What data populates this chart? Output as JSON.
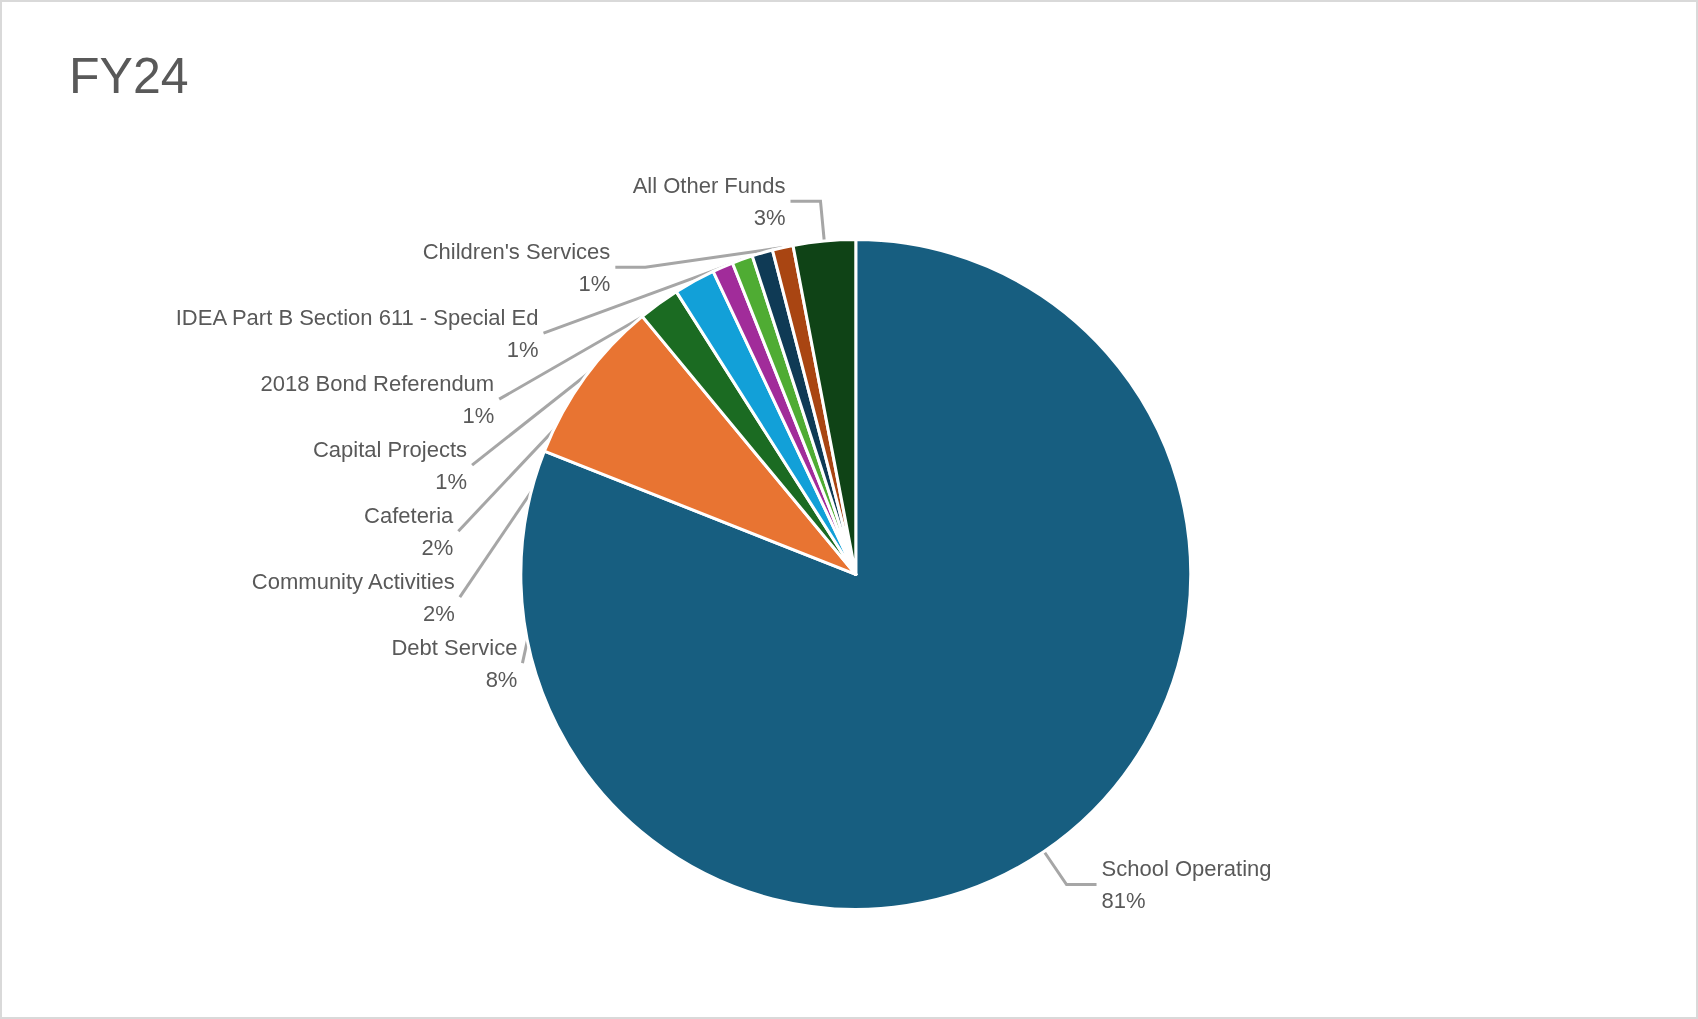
{
  "chart_data": {
    "type": "pie",
    "title": "FY24",
    "categories": [
      "School Operating",
      "Debt Service",
      "Community Activities",
      "Cafeteria",
      "Capital Projects",
      "2018 Bond Referendum",
      "IDEA Part B Section 611 - Special Ed",
      "Children's Services",
      "All Other Funds"
    ],
    "values": [
      81,
      8,
      2,
      2,
      1,
      1,
      1,
      1,
      3
    ],
    "value_labels": [
      "81%",
      "8%",
      "2%",
      "2%",
      "1%",
      "1%",
      "1%",
      "1%",
      "3%"
    ],
    "colors": [
      "#175e80",
      "#e87432",
      "#1b6b22",
      "#12a0d8",
      "#a12c9a",
      "#4fac33",
      "#0f3a55",
      "#a94512",
      "#0f4316"
    ],
    "legend": false
  }
}
